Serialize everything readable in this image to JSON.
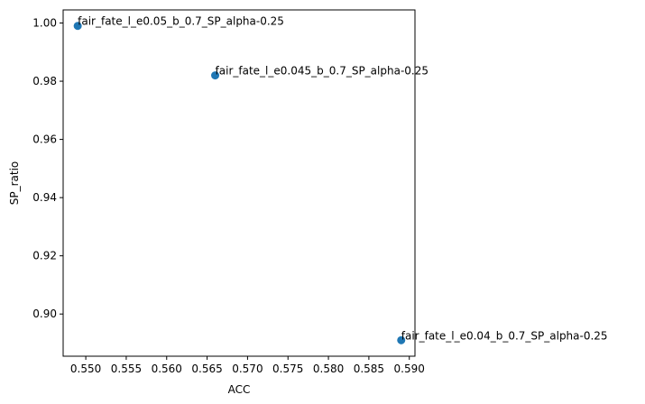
{
  "chart_data": {
    "type": "scatter",
    "title": "",
    "xlabel": "ACC",
    "ylabel": "SP_ratio",
    "xlim": [
      0.5472,
      0.5907
    ],
    "ylim": [
      0.8855,
      1.0045
    ],
    "xticks": [
      "0.550",
      "0.555",
      "0.560",
      "0.565",
      "0.570",
      "0.575",
      "0.580",
      "0.585",
      "0.590"
    ],
    "yticks": [
      "0.90",
      "0.92",
      "0.94",
      "0.96",
      "0.98",
      "1.00"
    ],
    "grid": false,
    "point_color": "#1f77b4",
    "points": [
      {
        "x": 0.549,
        "y": 0.999,
        "label": "fair_fate_l_e0.05_b_0.7_SP_alpha-0.25"
      },
      {
        "x": 0.566,
        "y": 0.982,
        "label": "fair_fate_l_e0.045_b_0.7_SP_alpha-0.25"
      },
      {
        "x": 0.589,
        "y": 0.891,
        "label": "fair_fate_l_e0.04_b_0.7_SP_alpha-0.25"
      }
    ]
  }
}
